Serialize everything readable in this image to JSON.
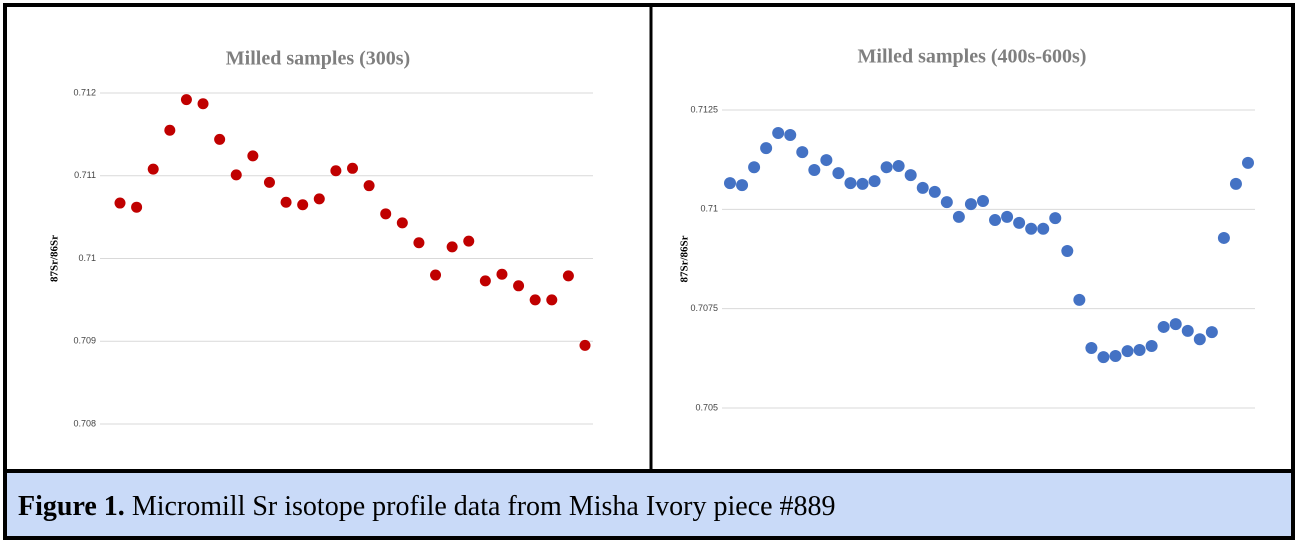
{
  "chart_data": [
    {
      "type": "scatter",
      "title": "Milled samples (300s)",
      "y_label": "87Sr/86Sr",
      "color": "#c00000",
      "ylim": [
        0.708,
        0.712
      ],
      "yticks": [
        0.712,
        0.711,
        0.71,
        0.709,
        0.708
      ],
      "grid": true,
      "values": [
        0.71067,
        0.71062,
        0.71108,
        0.71155,
        0.71192,
        0.71187,
        0.71144,
        0.71101,
        0.71124,
        0.71092,
        0.71068,
        0.71065,
        0.71072,
        0.71106,
        0.71109,
        0.71088,
        0.71054,
        0.71043,
        0.71019,
        0.7098,
        0.71014,
        0.71021,
        0.70973,
        0.70981,
        0.70967,
        0.7095,
        0.7095,
        0.70979,
        0.70895
      ]
    },
    {
      "type": "scatter",
      "title": "Milled samples (400s-600s)",
      "y_label": "87Sr/86Sr",
      "color": "#4472c4",
      "ylim": [
        0.705,
        0.7125
      ],
      "yticks": [
        0.7125,
        0.71,
        0.7075,
        0.705
      ],
      "grid": true,
      "values": [
        0.71066,
        0.71061,
        0.71106,
        0.71154,
        0.71192,
        0.71187,
        0.71144,
        0.71099,
        0.71124,
        0.71091,
        0.71066,
        0.71064,
        0.71071,
        0.71106,
        0.71109,
        0.71086,
        0.71054,
        0.71044,
        0.71018,
        0.70981,
        0.71013,
        0.71021,
        0.70973,
        0.70981,
        0.70966,
        0.70951,
        0.70951,
        0.70978,
        0.70895,
        0.70772,
        0.70651,
        0.70628,
        0.70631,
        0.70643,
        0.70646,
        0.70656,
        0.70704,
        0.70711,
        0.70694,
        0.70673,
        0.70691,
        0.70928,
        0.71064,
        0.71117
      ]
    }
  ],
  "caption": {
    "label": "Figure 1.",
    "text": "Micromill Sr isotope profile data from Misha Ivory piece #889"
  }
}
